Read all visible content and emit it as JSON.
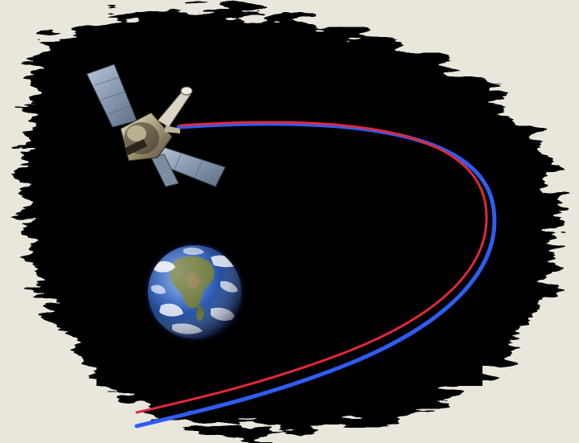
{
  "scene": {
    "background_color": "#e9e6dc",
    "space_color": "#000000",
    "orbit_colors": {
      "red": "#e0283c",
      "blue": "#2f5cf2"
    },
    "objects": [
      "satellite-icon",
      "earth-icon",
      "orbit-path-red",
      "orbit-path-blue"
    ]
  }
}
